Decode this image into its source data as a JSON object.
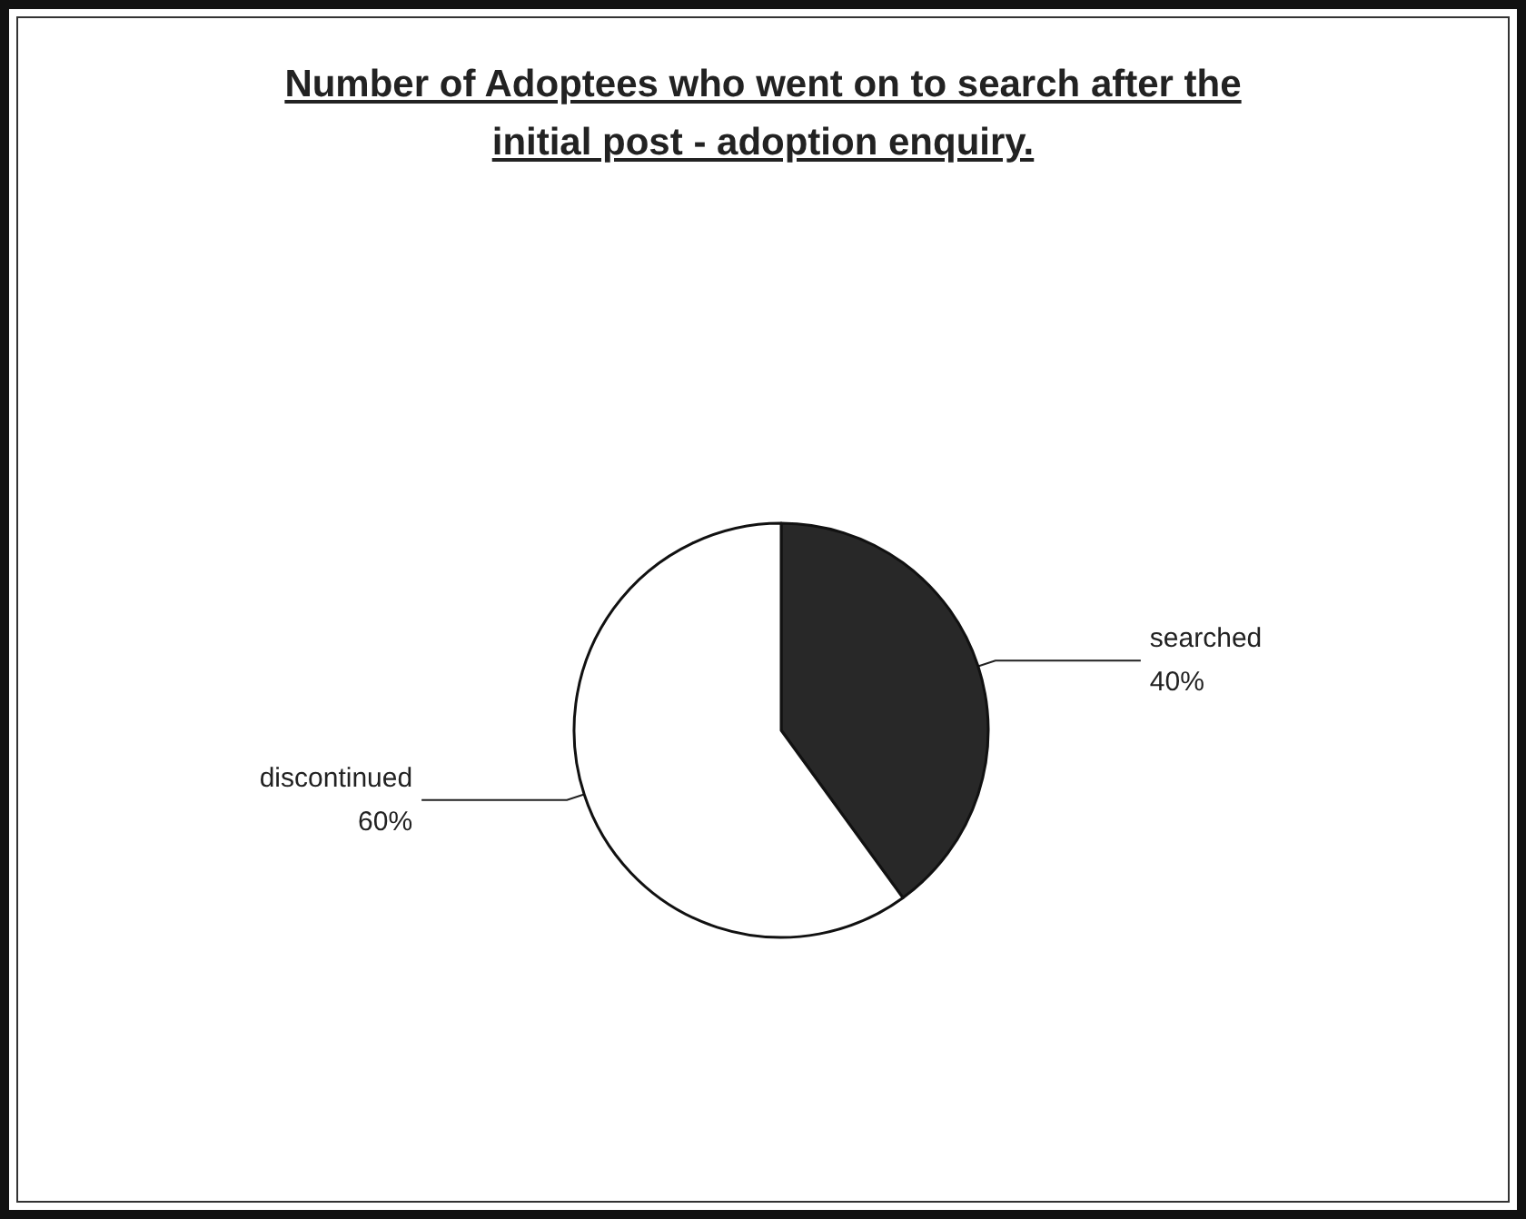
{
  "chart_data": {
    "type": "pie",
    "title": "Number of Adoptees who went on to search after the initial post - adoption enquiry.",
    "categories": [
      "searched",
      "discontinued"
    ],
    "values": [
      40,
      60
    ],
    "colors": [
      "#282828",
      "#ffffff"
    ],
    "value_labels": [
      "40%",
      "60%"
    ],
    "legend": false
  }
}
